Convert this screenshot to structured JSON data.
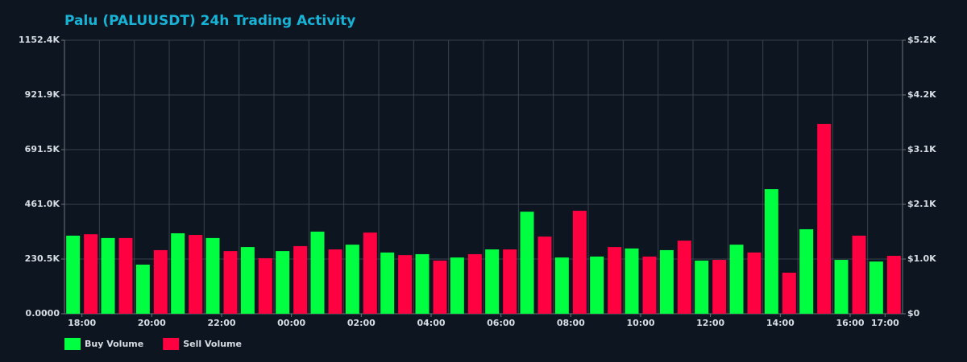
{
  "chart_data": {
    "type": "bar",
    "title": "Palu (PALUUSDT) 24h Trading Activity",
    "categories": [
      "18:00",
      null,
      "20:00",
      null,
      "22:00",
      null,
      "00:00",
      null,
      "02:00",
      null,
      "04:00",
      null,
      "06:00",
      null,
      "08:00",
      null,
      "10:00",
      null,
      "12:00",
      null,
      "14:00",
      null,
      "16:00",
      "17:00"
    ],
    "series": [
      {
        "name": "Buy Volume",
        "color": "#00ff41",
        "values": [
          329000,
          319000,
          207000,
          339000,
          319000,
          281000,
          264000,
          346000,
          291000,
          258000,
          251000,
          237000,
          271000,
          430000,
          237000,
          241000,
          275000,
          268000,
          224000,
          291000,
          525000,
          356000,
          227000,
          220000
        ]
      },
      {
        "name": "Sell Volume",
        "color": "#ff0040",
        "values": [
          335000,
          319000,
          268000,
          332000,
          264000,
          234000,
          285000,
          271000,
          342000,
          247000,
          224000,
          251000,
          271000,
          325000,
          434000,
          281000,
          241000,
          308000,
          227000,
          258000,
          173000,
          800000,
          329000,
          244000
        ]
      }
    ],
    "ylim": [
      0,
      1152430
    ],
    "yticks": [
      {
        "value": 0,
        "label": "0.0000"
      },
      {
        "value": 230486,
        "label": "230.5K"
      },
      {
        "value": 460972,
        "label": "461.0K"
      },
      {
        "value": 691458,
        "label": "691.5K"
      },
      {
        "value": 921944,
        "label": "921.9K"
      },
      {
        "value": 1152430,
        "label": "1152.4K"
      }
    ],
    "y2lim": [
      0,
      5200
    ],
    "y2ticks": [
      {
        "value": 0,
        "label": "$0"
      },
      {
        "value": 1040,
        "label": "$1.0K"
      },
      {
        "value": 2080,
        "label": "$2.1K"
      },
      {
        "value": 3120,
        "label": "$3.1K"
      },
      {
        "value": 4160,
        "label": "$4.2K"
      },
      {
        "value": 5200,
        "label": "$5.2K"
      }
    ],
    "grid": true
  }
}
